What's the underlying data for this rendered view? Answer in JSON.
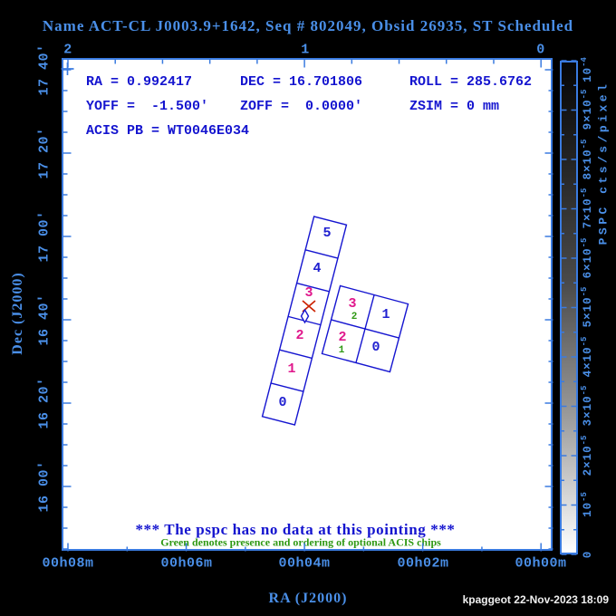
{
  "header": {
    "title": "Name ACT-CL J0003.9+1642, Seq # 802049, Obsid 26935, ST Scheduled"
  },
  "info": {
    "rows": [
      [
        "RA = 0.992417",
        "DEC = 16.701806",
        "ROLL = 285.6762"
      ],
      [
        "YOFF =  -1.500'",
        "ZOFF =  0.0000'",
        "ZSIM = 0 mm"
      ],
      [
        "ACIS PB = WT0046E034"
      ]
    ]
  },
  "messages": {
    "pspc": "*** The pspc has no data at this pointing ***",
    "green_note": "Green denotes presence and ordering of optional ACIS chips"
  },
  "axes": {
    "x": {
      "title": "RA (J2000)",
      "tick_labels": [
        "00h08m",
        "00h06m",
        "00h04m",
        "00h02m",
        "00h00m"
      ]
    },
    "y": {
      "title": "Dec (J2000)",
      "tick_labels": [
        "16 00'",
        "16 20'",
        "16 40'",
        "17 00'",
        "17 20'",
        "17 40'"
      ]
    },
    "top": {
      "tick_labels": [
        "2",
        "1",
        "0"
      ]
    }
  },
  "colorbar": {
    "title": "PSPC cts/s/pixel",
    "ticks": [
      {
        "mant": "10",
        "exp": "-4"
      },
      {
        "mant": "9×10",
        "exp": "-5"
      },
      {
        "mant": "8×10",
        "exp": "-5"
      },
      {
        "mant": "7×10",
        "exp": "-5"
      },
      {
        "mant": "6×10",
        "exp": "-5"
      },
      {
        "mant": "5×10",
        "exp": "-5"
      },
      {
        "mant": "4×10",
        "exp": "-5"
      },
      {
        "mant": "3×10",
        "exp": "-5"
      },
      {
        "mant": "2×10",
        "exp": "-5"
      },
      {
        "mant": "10",
        "exp": "-5"
      },
      {
        "mant": "0",
        "exp": ""
      }
    ]
  },
  "chips": {
    "strip": [
      {
        "label": "5",
        "color": "blue"
      },
      {
        "label": "4",
        "color": "blue"
      },
      {
        "label": "3",
        "color": "magenta"
      },
      {
        "label": "2",
        "color": "magenta"
      },
      {
        "label": "1",
        "color": "magenta"
      },
      {
        "label": "0",
        "color": "blue"
      }
    ],
    "quad": [
      {
        "label": "3",
        "order": "2",
        "color": "magenta"
      },
      {
        "label": "1",
        "order": "",
        "color": "blue"
      },
      {
        "label": "2",
        "order": "1",
        "color": "magenta"
      },
      {
        "label": "0",
        "order": "",
        "color": "blue"
      }
    ]
  },
  "markers": {
    "aimpoint_x": "red-x-marker",
    "aimpoint_diamond": "blue-diamond-marker",
    "field_cross": "blue-plus-marker"
  },
  "footer": {
    "timestamp": "kpaggeot 22-Nov-2023 18:09"
  },
  "colors": {
    "background": "#000000",
    "plot_background": "#ffffff",
    "axis_blue": "#3a7be0",
    "label_blue": "#4a8fe8",
    "data_blue": "#1414cf",
    "chip_outline_blue": "#1515d0",
    "chip_magenta": "#e0188c",
    "optional_green": "#2f9914",
    "aimpoint_red": "#cc2200",
    "timestamp_white": "#f0f0f0"
  }
}
